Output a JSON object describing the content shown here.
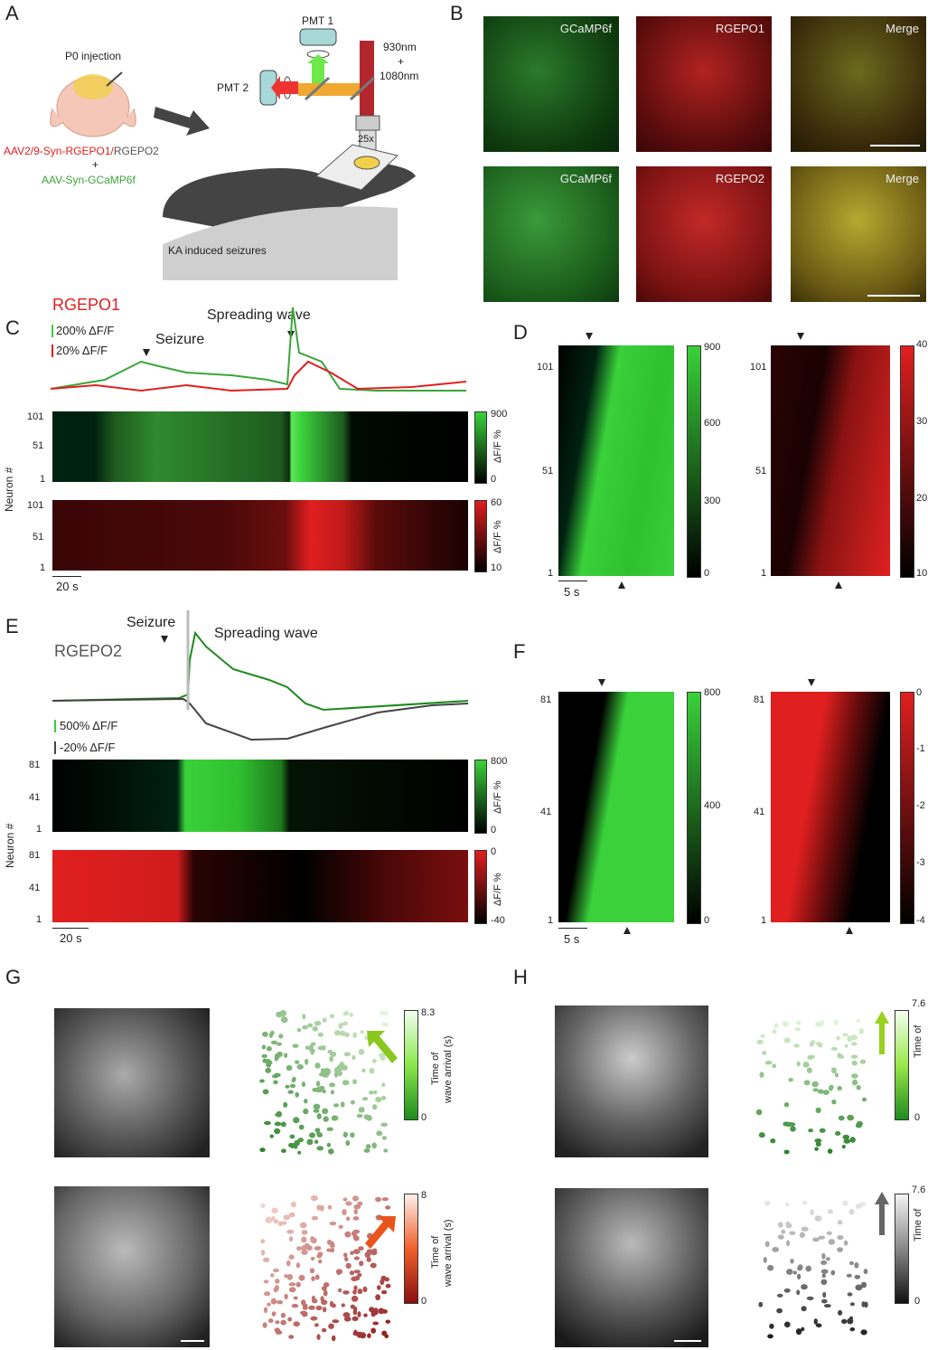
{
  "panels": {
    "A": {
      "label": "A",
      "injection": "P0 injection",
      "virus1": "AAV2/9-Syn-RGEPO1/",
      "virus1b": "RGEPO2",
      "plus": "+",
      "virus2": "AAV-Syn-GCaMP6f",
      "pmt1": "PMT 1",
      "pmt2": "PMT 2",
      "laser1": "930nm",
      "laser_plus": "+",
      "laser2": "1080nm",
      "objective": "25x",
      "condition": "KA induced seizures"
    },
    "B": {
      "label": "B",
      "row1": [
        "GCaMP6f",
        "RGEPO1",
        "Merge"
      ],
      "row2": [
        "GCaMP6f",
        "RGEPO2",
        "Merge"
      ]
    },
    "C": {
      "label": "C",
      "title": "RGEPO1",
      "scale_green": "200% ΔF/F",
      "scale_red": "20% ΔF/F",
      "seizure": "Seizure",
      "wave": "Spreading wave",
      "ylabel": "Neuron #",
      "yticks": [
        "101",
        "51",
        "1"
      ],
      "green_cbar": [
        "900",
        "0"
      ],
      "red_cbar": [
        "60",
        "10"
      ],
      "cbar_label": "ΔF/F %",
      "timebar": "20 s"
    },
    "D": {
      "label": "D",
      "yticks": [
        "101",
        "51",
        "1"
      ],
      "green_cbar": [
        "900",
        "600",
        "300",
        "0"
      ],
      "red_cbar": [
        "40",
        "30",
        "20",
        "10"
      ],
      "timebar": "5 s"
    },
    "E": {
      "label": "E",
      "title": "RGEPO2",
      "seizure": "Seizure",
      "wave": "Spreading wave",
      "scale_green": "500% ΔF/F",
      "scale_gray": "-20% ΔF/F",
      "ylabel": "Neuron #",
      "yticks": [
        "81",
        "41",
        "1"
      ],
      "green_cbar": [
        "800",
        "0"
      ],
      "red_cbar": [
        "0",
        "-40"
      ],
      "cbar_label": "ΔF/F %",
      "timebar": "20 s"
    },
    "F": {
      "label": "F",
      "yticks": [
        "81",
        "41",
        "1"
      ],
      "green_cbar": [
        "800",
        "400",
        "0"
      ],
      "red_cbar": [
        "0",
        "-1",
        "-2",
        "-3",
        "-4"
      ],
      "timebar": "5 s"
    },
    "G": {
      "label": "G",
      "top_cbar": [
        "8.3",
        "0"
      ],
      "bottom_cbar": [
        "8",
        "0"
      ],
      "cbar_label1": "Time of",
      "cbar_label2": "wave arrival (s)"
    },
    "H": {
      "label": "H",
      "top_cbar": [
        "7.6",
        "0"
      ],
      "bottom_cbar": [
        "7.6",
        "0"
      ],
      "cbar_label1": "Time of"
    }
  },
  "colors": {
    "green": "#3ad13a",
    "red": "#e01f1f",
    "gray": "#555555"
  }
}
